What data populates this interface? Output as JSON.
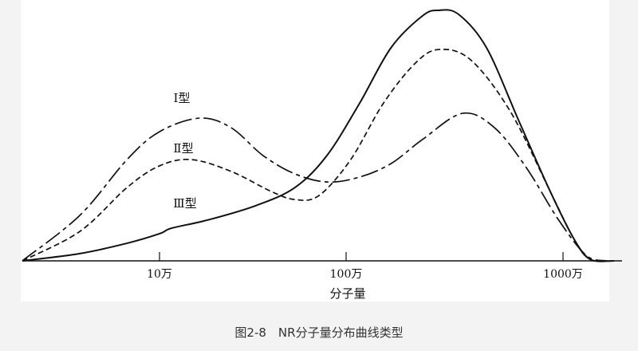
{
  "chart_data": {
    "type": "line",
    "caption": "图2-8　NR分子量分布曲线类型",
    "xlabel": "分子量",
    "xscale": "log",
    "xticks": [
      {
        "value": 10,
        "label": "10万"
      },
      {
        "value": 100,
        "label": "100万"
      },
      {
        "value": 1000,
        "label": "1000万"
      }
    ],
    "xlim": [
      1.84,
      1720
    ],
    "ylim": [
      0,
      100
    ],
    "grid": false,
    "series": [
      {
        "name": "Ⅰ型",
        "style": "dash-dot",
        "points": [
          [
            1.84,
            0
          ],
          [
            3.74,
            18.1
          ],
          [
            6.7,
            40.3
          ],
          [
            10,
            51.4
          ],
          [
            16.4,
            56.8
          ],
          [
            24.2,
            53.0
          ],
          [
            35.9,
            41.9
          ],
          [
            53.2,
            34.6
          ],
          [
            78.9,
            31.4
          ],
          [
            115,
            33.3
          ],
          [
            161,
            38.7
          ],
          [
            225,
            48.3
          ],
          [
            344,
            58.7
          ],
          [
            483,
            53.0
          ],
          [
            677,
            37.1
          ],
          [
            950,
            16.5
          ],
          [
            1278,
            2.2
          ],
          [
            1580,
            0
          ]
        ]
      },
      {
        "name": "Ⅱ型",
        "style": "dashed",
        "points": [
          [
            1.84,
            0
          ],
          [
            3.74,
            11.7
          ],
          [
            6.7,
            29.2
          ],
          [
            10,
            37.8
          ],
          [
            14.8,
            40.3
          ],
          [
            24.2,
            35.6
          ],
          [
            39.7,
            27.6
          ],
          [
            53.2,
            24.4
          ],
          [
            71.6,
            26.0
          ],
          [
            105,
            40.3
          ],
          [
            148,
            62.5
          ],
          [
            207,
            78.4
          ],
          [
            267,
            84.1
          ],
          [
            375,
            80.0
          ],
          [
            572,
            59.4
          ],
          [
            873,
            27.6
          ],
          [
            1125,
            8.6
          ],
          [
            1334,
            0.6
          ],
          [
            1580,
            0
          ]
        ]
      },
      {
        "name": "Ⅲ型",
        "style": "solid",
        "points": [
          [
            1.84,
            0
          ],
          [
            3.74,
            2.9
          ],
          [
            6.7,
            7.0
          ],
          [
            10,
            10.8
          ],
          [
            11.6,
            13.0
          ],
          [
            18.0,
            16.2
          ],
          [
            32.6,
            21.9
          ],
          [
            53.2,
            29.2
          ],
          [
            78.9,
            41.9
          ],
          [
            115,
            62.5
          ],
          [
            161,
            84.8
          ],
          [
            225,
            97.5
          ],
          [
            267,
            99.7
          ],
          [
            330,
            98.1
          ],
          [
            444,
            84.8
          ],
          [
            622,
            56.2
          ],
          [
            873,
            27.6
          ],
          [
            1125,
            8.6
          ],
          [
            1334,
            0.6
          ],
          [
            1719,
            0
          ]
        ]
      }
    ]
  }
}
